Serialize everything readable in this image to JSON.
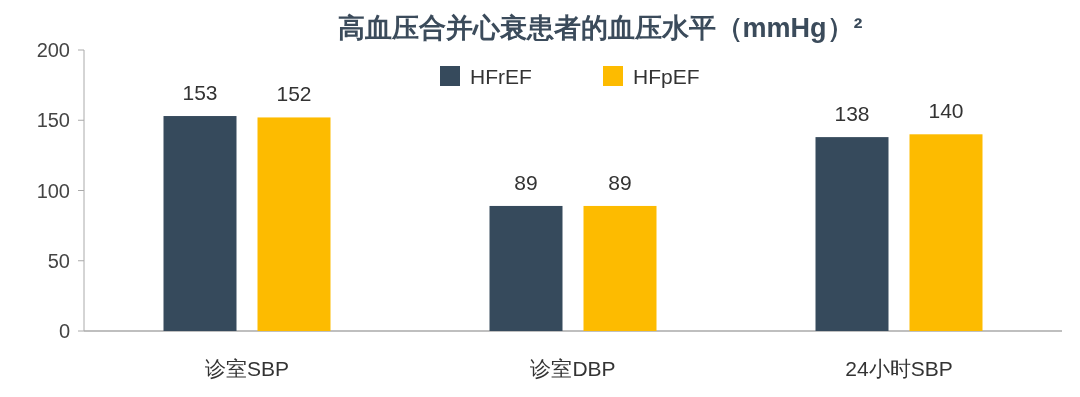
{
  "chart_data": {
    "type": "bar",
    "title": "高血压合并心衰患者的血压水平（mmHg）²",
    "categories": [
      "诊室SBP",
      "诊室DBP",
      "24小时SBP"
    ],
    "series": [
      {
        "name": "HFrEF",
        "color": "#364a5c",
        "values": [
          153,
          89,
          138
        ]
      },
      {
        "name": "HFpEF",
        "color": "#fdbb00",
        "values": [
          152,
          89,
          140
        ]
      }
    ],
    "ylim": [
      0,
      200
    ],
    "yticks": [
      0,
      50,
      100,
      150,
      200
    ],
    "data_labels": true,
    "legend": "top"
  }
}
